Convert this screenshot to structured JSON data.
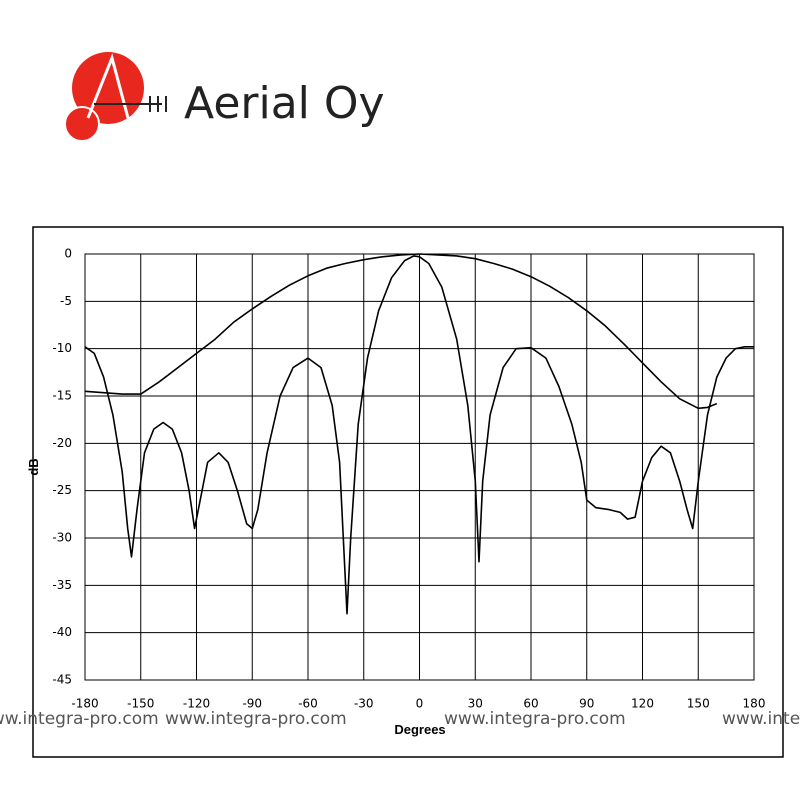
{
  "logo": {
    "text": "Aerial Oy"
  },
  "watermark": "www.integra-pro.com",
  "chart_data": {
    "type": "line",
    "xlabel": "Degrees",
    "ylabel": "dB",
    "xlim": [
      -180,
      180
    ],
    "ylim": [
      -45,
      0
    ],
    "xticks": [
      -180,
      -150,
      -120,
      -90,
      -60,
      -30,
      0,
      30,
      60,
      90,
      120,
      150,
      180
    ],
    "yticks": [
      0,
      -5,
      -10,
      -15,
      -20,
      -25,
      -30,
      -35,
      -40,
      -45
    ],
    "grid": true,
    "series": [
      {
        "color": "#000000",
        "x": [
          -180,
          -160,
          -150,
          -140,
          -130,
          -120,
          -110,
          -100,
          -90,
          -80,
          -70,
          -60,
          -50,
          -40,
          -30,
          -20,
          -10,
          0,
          10,
          20,
          30,
          40,
          50,
          60,
          70,
          80,
          90,
          100,
          110,
          120,
          130,
          140,
          150,
          155,
          160
        ],
        "values": [
          -14.5,
          -14.8,
          -14.8,
          -13.5,
          -12,
          -10.5,
          -9,
          -7.2,
          -5.8,
          -4.5,
          -3.3,
          -2.3,
          -1.5,
          -1,
          -0.6,
          -0.3,
          -0.1,
          0,
          -0.1,
          -0.2,
          -0.5,
          -1,
          -1.6,
          -2.4,
          -3.4,
          -4.6,
          -6,
          -7.6,
          -9.5,
          -11.5,
          -13.5,
          -15.3,
          -16.3,
          -16.2,
          -15.8
        ]
      },
      {
        "color": "#000000",
        "x": [
          -180,
          -175,
          -170,
          -165,
          -160,
          -157,
          -155,
          -152,
          -148,
          -143,
          -138,
          -133,
          -128,
          -124,
          -121,
          -118,
          -114,
          -108,
          -103,
          -98,
          -93,
          -90,
          -87,
          -82,
          -75,
          -68,
          -60,
          -53,
          -47,
          -43,
          -41,
          -39,
          -37,
          -33,
          -28,
          -22,
          -15,
          -8,
          -3,
          0,
          5,
          12,
          20,
          26,
          30,
          32,
          34,
          38,
          45,
          52,
          60,
          68,
          75,
          82,
          87,
          90,
          95,
          102,
          108,
          112,
          116,
          120,
          125,
          130,
          135,
          140,
          144,
          147,
          150,
          155,
          160,
          165,
          170,
          175,
          180
        ],
        "values": [
          -9.8,
          -10.5,
          -13,
          -17,
          -23,
          -29,
          -32,
          -27,
          -21,
          -18.5,
          -17.8,
          -18.5,
          -21,
          -25,
          -29,
          -26,
          -22,
          -21,
          -22,
          -25,
          -28.5,
          -29,
          -27,
          -21,
          -15,
          -12,
          -11,
          -12,
          -16,
          -22,
          -30,
          -38,
          -30,
          -18,
          -11,
          -6,
          -2.5,
          -0.7,
          -0.2,
          -0.3,
          -1,
          -3.5,
          -9,
          -16,
          -24,
          -32.5,
          -24,
          -17,
          -12,
          -10,
          -9.9,
          -11,
          -14,
          -18,
          -22,
          -26,
          -26.8,
          -27,
          -27.3,
          -28,
          -27.8,
          -24,
          -21.5,
          -20.3,
          -21,
          -24,
          -27,
          -29,
          -24,
          -17,
          -13,
          -11,
          -10,
          -9.8,
          -9.8
        ]
      }
    ]
  }
}
